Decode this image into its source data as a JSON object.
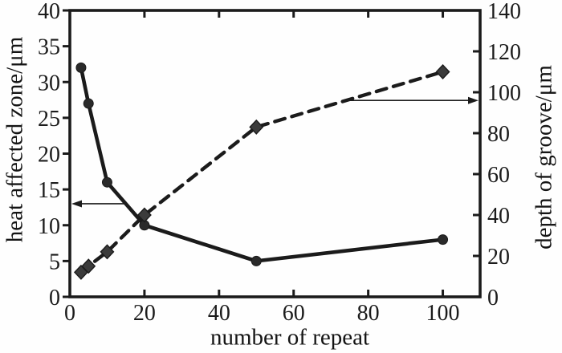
{
  "figure": {
    "background": "#fefefe",
    "ink_color": "#1b1b1b",
    "marker_fill": "#3b3b3b"
  },
  "chart_data": {
    "type": "line",
    "title": "",
    "xlabel": "number of repeat",
    "ylabel_left": "heat affected zone/μm",
    "ylabel_right": "depth of groove/μm",
    "x": [
      3,
      5,
      10,
      20,
      50,
      100
    ],
    "series": [
      {
        "name": "heat affected zone",
        "axis": "left",
        "style": "solid",
        "marker": "circle",
        "values": [
          32,
          27,
          16,
          10,
          5,
          8
        ]
      },
      {
        "name": "depth of groove",
        "axis": "right",
        "style": "dashed",
        "marker": "diamond",
        "values": [
          12,
          15,
          22,
          40,
          83,
          110
        ]
      }
    ],
    "xlim": [
      0,
      110
    ],
    "ylim_left": [
      0,
      40
    ],
    "ylim_right": [
      0,
      140
    ],
    "x_ticks": [
      0,
      20,
      40,
      60,
      80,
      100
    ],
    "y_ticks_left": [
      0,
      5,
      10,
      15,
      20,
      25,
      30,
      35,
      40
    ],
    "y_ticks_right": [
      0,
      20,
      40,
      60,
      80,
      100,
      120,
      140
    ],
    "grid": false,
    "legend": "none",
    "annotations": [
      {
        "type": "arrow",
        "points_to": "left-axis",
        "axis": "left",
        "y_value": 13,
        "x_start": 15,
        "meaning": "solid curve reads on left axis"
      },
      {
        "type": "arrow",
        "points_to": "right-axis",
        "axis": "right",
        "y_value": 96,
        "x_start": 74,
        "meaning": "dashed curve reads on right axis"
      }
    ]
  }
}
